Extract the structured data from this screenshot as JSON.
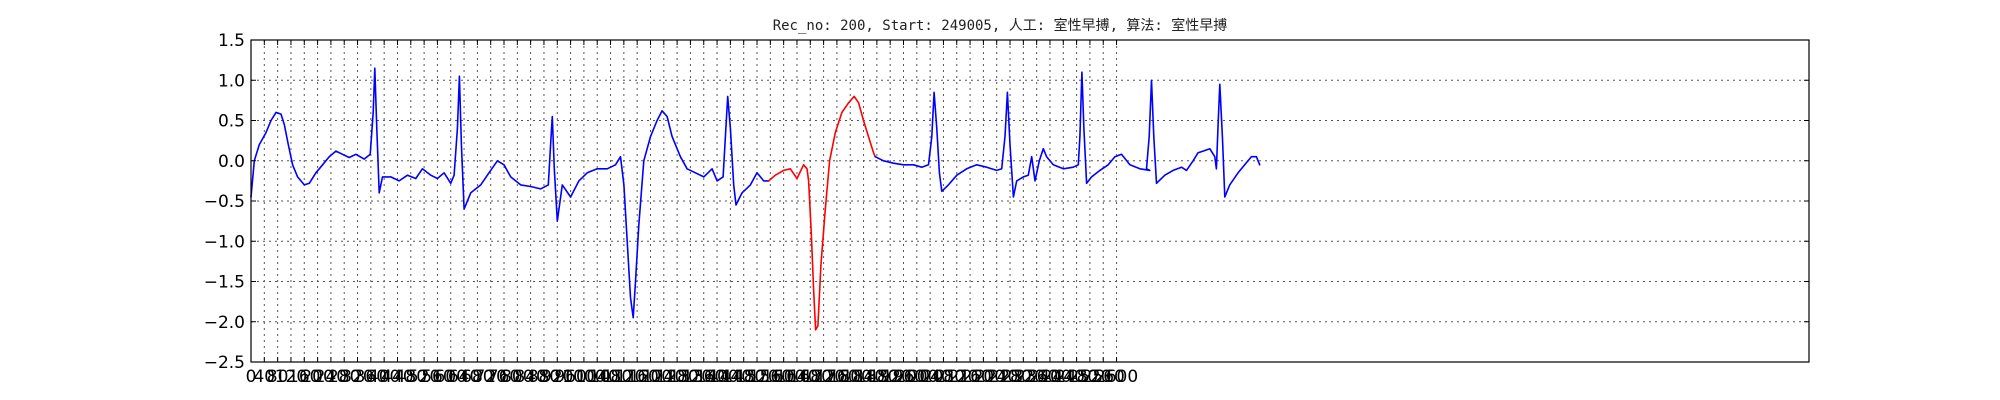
{
  "chart_data": {
    "type": "line",
    "title": "Rec_no: 200, Start: 249005, 人工: 室性早搏, 算法: 室性早搏",
    "xlabel": "",
    "ylabel": "",
    "xlim": [
      0,
      4680
    ],
    "ylim": [
      -2.5,
      1.5
    ],
    "grid": true,
    "x_ticks": [
      0,
      40,
      80,
      120,
      160,
      200,
      240,
      280,
      320,
      360,
      400,
      440,
      480,
      520,
      560,
      600,
      640,
      680,
      720,
      760,
      800,
      840,
      880,
      920,
      960,
      1000,
      1040,
      1080,
      1120,
      1160,
      1200,
      1240,
      1280,
      1320,
      1360,
      1400,
      1440,
      1480,
      1520,
      1560,
      1600,
      1640,
      1680,
      1720,
      1760,
      1800,
      1840,
      1880,
      1920,
      1960,
      2000,
      2040,
      2080,
      2120,
      2160,
      2200,
      2240,
      2280,
      2320,
      2360,
      2400,
      2440,
      2480,
      2520,
      2560,
      2600
    ],
    "y_ticks": [
      1.5,
      1.0,
      0.5,
      0.0,
      -0.5,
      -1.0,
      -1.5,
      -2.0,
      -2.5
    ],
    "y_tick_labels": [
      "1.5",
      "1.0",
      "0.5",
      "0.0",
      "−0.5",
      "−1.0",
      "−1.5",
      "−2.0",
      "−2.5"
    ],
    "series": [
      {
        "color": "#0000ff",
        "points": [
          [
            0,
            -0.45
          ],
          [
            10,
            0.0
          ],
          [
            25,
            0.2
          ],
          [
            45,
            0.35
          ],
          [
            60,
            0.5
          ],
          [
            75,
            0.6
          ],
          [
            90,
            0.58
          ],
          [
            100,
            0.45
          ],
          [
            112,
            0.2
          ],
          [
            125,
            -0.05
          ],
          [
            140,
            -0.2
          ],
          [
            160,
            -0.3
          ],
          [
            175,
            -0.28
          ],
          [
            195,
            -0.15
          ],
          [
            215,
            -0.05
          ],
          [
            235,
            0.05
          ],
          [
            255,
            0.12
          ],
          [
            275,
            0.08
          ],
          [
            295,
            0.04
          ],
          [
            315,
            0.08
          ],
          [
            340,
            0.02
          ],
          [
            358,
            0.08
          ],
          [
            367,
            0.6
          ],
          [
            372,
            1.15
          ],
          [
            378,
            0.4
          ],
          [
            385,
            -0.4
          ],
          [
            395,
            -0.2
          ],
          [
            420,
            -0.2
          ],
          [
            445,
            -0.25
          ],
          [
            470,
            -0.18
          ],
          [
            495,
            -0.22
          ],
          [
            515,
            -0.1
          ],
          [
            540,
            -0.18
          ],
          [
            560,
            -0.22
          ],
          [
            580,
            -0.15
          ],
          [
            600,
            -0.28
          ],
          [
            610,
            -0.18
          ],
          [
            620,
            0.4
          ],
          [
            626,
            1.05
          ],
          [
            632,
            0.2
          ],
          [
            640,
            -0.6
          ],
          [
            660,
            -0.4
          ],
          [
            690,
            -0.3
          ],
          [
            715,
            -0.15
          ],
          [
            740,
            0.0
          ],
          [
            760,
            -0.05
          ],
          [
            780,
            -0.2
          ],
          [
            810,
            -0.3
          ],
          [
            840,
            -0.32
          ],
          [
            870,
            -0.35
          ],
          [
            893,
            -0.3
          ],
          [
            900,
            0.2
          ],
          [
            905,
            0.55
          ],
          [
            911,
            -0.1
          ],
          [
            920,
            -0.75
          ],
          [
            935,
            -0.3
          ],
          [
            960,
            -0.45
          ],
          [
            985,
            -0.25
          ],
          [
            1010,
            -0.15
          ],
          [
            1040,
            -0.1
          ],
          [
            1070,
            -0.1
          ],
          [
            1095,
            -0.05
          ],
          [
            1110,
            0.05
          ],
          [
            1120,
            -0.3
          ],
          [
            1130,
            -1.0
          ],
          [
            1140,
            -1.7
          ],
          [
            1148,
            -1.95
          ],
          [
            1155,
            -1.5
          ],
          [
            1165,
            -0.8
          ],
          [
            1180,
            0.0
          ],
          [
            1200,
            0.3
          ],
          [
            1220,
            0.5
          ],
          [
            1235,
            0.62
          ],
          [
            1250,
            0.55
          ],
          [
            1265,
            0.3
          ],
          [
            1290,
            0.05
          ],
          [
            1310,
            -0.1
          ],
          [
            1335,
            -0.15
          ],
          [
            1360,
            -0.2
          ],
          [
            1385,
            -0.1
          ],
          [
            1400,
            -0.25
          ],
          [
            1418,
            -0.2
          ],
          [
            1425,
            0.3
          ],
          [
            1432,
            0.8
          ],
          [
            1440,
            0.4
          ],
          [
            1450,
            -0.3
          ],
          [
            1457,
            -0.55
          ],
          [
            1475,
            -0.4
          ],
          [
            1500,
            -0.3
          ],
          [
            1520,
            -0.15
          ],
          [
            1540,
            -0.25
          ],
          [
            1555,
            -0.25
          ]
        ]
      },
      {
        "color": "#ff0000",
        "points": [
          [
            1555,
            -0.25
          ],
          [
            1575,
            -0.18
          ],
          [
            1600,
            -0.12
          ],
          [
            1620,
            -0.1
          ],
          [
            1640,
            -0.22
          ],
          [
            1660,
            -0.05
          ],
          [
            1670,
            -0.1
          ],
          [
            1675,
            -0.25
          ],
          [
            1683,
            -0.9
          ],
          [
            1690,
            -1.6
          ],
          [
            1696,
            -2.1
          ],
          [
            1703,
            -2.05
          ],
          [
            1712,
            -1.3
          ],
          [
            1725,
            -0.6
          ],
          [
            1738,
            0.0
          ],
          [
            1755,
            0.35
          ],
          [
            1775,
            0.6
          ],
          [
            1795,
            0.72
          ],
          [
            1812,
            0.8
          ],
          [
            1825,
            0.72
          ],
          [
            1840,
            0.5
          ],
          [
            1855,
            0.3
          ],
          [
            1870,
            0.1
          ],
          [
            1875,
            0.05
          ]
        ]
      },
      {
        "color": "#0000ff",
        "points": [
          [
            1875,
            0.05
          ],
          [
            1900,
            0.0
          ],
          [
            1930,
            -0.03
          ],
          [
            1960,
            -0.05
          ],
          [
            1990,
            -0.05
          ],
          [
            2015,
            -0.08
          ],
          [
            2035,
            -0.05
          ],
          [
            2045,
            0.3
          ],
          [
            2052,
            0.85
          ],
          [
            2060,
            0.4
          ],
          [
            2068,
            -0.15
          ],
          [
            2075,
            -0.38
          ],
          [
            2095,
            -0.3
          ],
          [
            2120,
            -0.18
          ],
          [
            2150,
            -0.1
          ],
          [
            2180,
            -0.05
          ],
          [
            2210,
            -0.08
          ],
          [
            2240,
            -0.12
          ],
          [
            2255,
            -0.1
          ],
          [
            2265,
            0.3
          ],
          [
            2272,
            0.85
          ],
          [
            2280,
            0.2
          ],
          [
            2290,
            -0.45
          ],
          [
            2300,
            -0.25
          ],
          [
            2320,
            -0.2
          ],
          [
            2335,
            -0.18
          ],
          [
            2345,
            0.05
          ],
          [
            2355,
            -0.25
          ],
          [
            2368,
            0.0
          ],
          [
            2380,
            0.15
          ],
          [
            2390,
            0.05
          ],
          [
            2410,
            -0.05
          ],
          [
            2440,
            -0.1
          ],
          [
            2470,
            -0.08
          ],
          [
            2485,
            -0.05
          ],
          [
            2490,
            0.3
          ],
          [
            2496,
            1.1
          ],
          [
            2502,
            0.4
          ],
          [
            2510,
            -0.28
          ],
          [
            2525,
            -0.2
          ],
          [
            2550,
            -0.12
          ],
          [
            2575,
            -0.05
          ],
          [
            2595,
            0.05
          ],
          [
            2615,
            0.08
          ],
          [
            2640,
            -0.05
          ],
          [
            2670,
            -0.1
          ],
          [
            2700,
            -0.12
          ],
          [
            2690,
            -0.1
          ],
          [
            2698,
            0.3
          ],
          [
            2705,
            1.0
          ],
          [
            2712,
            0.3
          ],
          [
            2720,
            -0.28
          ],
          [
            2745,
            -0.18
          ],
          [
            2770,
            -0.12
          ],
          [
            2795,
            -0.08
          ],
          [
            2810,
            -0.12
          ],
          [
            2830,
            0.0
          ],
          [
            2845,
            0.1
          ],
          [
            2860,
            0.12
          ],
          [
            2880,
            0.15
          ],
          [
            2895,
            0.05
          ],
          [
            2900,
            -0.1
          ],
          [
            2905,
            0.45
          ],
          [
            2910,
            0.95
          ],
          [
            2918,
            0.3
          ],
          [
            2925,
            -0.45
          ],
          [
            2940,
            -0.3
          ],
          [
            2965,
            -0.15
          ],
          [
            2985,
            -0.05
          ],
          [
            3005,
            0.05
          ],
          [
            3020,
            0.05
          ],
          [
            3030,
            -0.05
          ]
        ]
      }
    ]
  }
}
